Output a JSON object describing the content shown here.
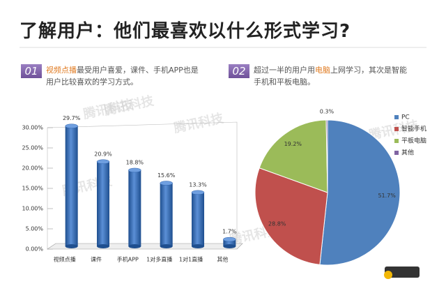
{
  "title": "了解用户：他们最喜欢以什么形式学习?",
  "watermark": "腾讯科技",
  "sections": [
    {
      "number": "01",
      "parts": [
        {
          "text": "视频点播",
          "highlight": true
        },
        {
          "text": "最受用户喜爱，课件、手机APP也是用户比较喜欢的学习方式。",
          "highlight": false
        }
      ]
    },
    {
      "number": "02",
      "parts": [
        {
          "text": "超过一半的用户用",
          "highlight": false
        },
        {
          "text": "电脑",
          "highlight": true
        },
        {
          "text": "上网学习，其次是智能手机和平板电脑。",
          "highlight": false
        }
      ]
    }
  ],
  "chart_data": [
    {
      "type": "bar",
      "color": "#3a6eb5",
      "categories": [
        "视频点播",
        "课件",
        "手机APP",
        "1对多直播",
        "1对1直播",
        "其他"
      ],
      "values": [
        29.7,
        20.9,
        18.8,
        15.6,
        13.3,
        1.7
      ],
      "value_labels": [
        "29.7%",
        "20.9%",
        "18.8%",
        "15.6%",
        "13.3%",
        "1.7%"
      ],
      "ylim": [
        0,
        30
      ],
      "yticks": [
        {
          "value": 0,
          "label": "0.00%"
        },
        {
          "value": 5,
          "label": "5.00%"
        },
        {
          "value": 10,
          "label": "10.00%"
        },
        {
          "value": 15,
          "label": "15.00%"
        },
        {
          "value": 20,
          "label": "20.00%"
        },
        {
          "value": 25,
          "label": "25.00%"
        },
        {
          "value": 30,
          "label": "30.00%"
        }
      ]
    },
    {
      "type": "pie",
      "categories": [
        "PC",
        "智能手机",
        "平板电脑",
        "其他"
      ],
      "values": [
        51.7,
        28.8,
        19.2,
        0.3
      ],
      "value_labels": [
        "51.7%",
        "28.8%",
        "19.2%",
        "0.3%"
      ],
      "colors": [
        "#4f81bd",
        "#c0504d",
        "#9bbb59",
        "#8064a2"
      ],
      "legend": "right"
    }
  ]
}
